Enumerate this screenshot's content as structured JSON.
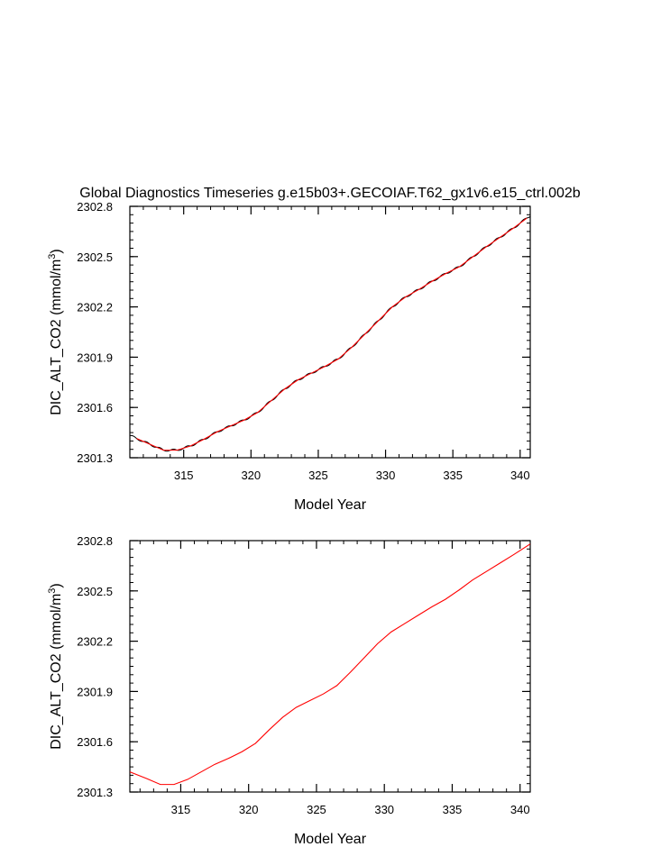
{
  "page_title": "Global Diagnostics Timeseries g.e15b03+.GECOIAF.T62_gx1v6.e15_ctrl.002b",
  "colors": {
    "axes": "#000000",
    "raw_series": "#000000",
    "smooth_series": "#ff0000",
    "background": "#ffffff"
  },
  "chart_data": [
    {
      "type": "line",
      "title": "Global Diagnostics Timeseries g.e15b03+.GECOIAF.T62_gx1v6.e15_ctrl.002b",
      "xlabel": "Model Year",
      "ylabel_main": "DIC_ALT_CO2 (mmol/m",
      "ylabel_sup": "3",
      "ylabel_close": ")",
      "xlim": [
        311.0,
        340.75
      ],
      "ylim": [
        2301.3,
        2302.8
      ],
      "x_ticks": [
        315,
        320,
        325,
        330,
        335,
        340
      ],
      "x_tick_labels": [
        "315",
        "320",
        "325",
        "330",
        "335",
        "340"
      ],
      "y_ticks": [
        2301.3,
        2301.6,
        2301.9,
        2302.2,
        2302.5,
        2302.8
      ],
      "y_tick_labels": [
        "2301.3",
        "2301.6",
        "2301.9",
        "2302.2",
        "2302.5",
        "2302.8"
      ],
      "x_minor_step": 1,
      "y_minor_step": 0.05,
      "grid": false,
      "raw_monthly": {
        "x_start": 311.0,
        "x_end": 340.75,
        "seasonal_amplitude": 0.006
      },
      "series": [
        {
          "role": "annual-mean",
          "color": "#ff0000",
          "x": [
            311.5,
            312.5,
            313.5,
            314.5,
            315.5,
            316.5,
            317.5,
            318.5,
            319.5,
            320.5,
            321.5,
            322.5,
            323.5,
            324.5,
            325.5,
            326.5,
            327.5,
            328.5,
            329.5,
            330.5,
            331.5,
            332.5,
            333.5,
            334.5,
            335.5,
            336.5,
            337.5,
            338.5,
            339.5,
            340.5
          ],
          "values": [
            2301.415,
            2301.38,
            2301.345,
            2301.345,
            2301.37,
            2301.41,
            2301.455,
            2301.49,
            2301.525,
            2301.57,
            2301.64,
            2301.71,
            2301.765,
            2301.805,
            2301.845,
            2301.89,
            2301.96,
            2302.04,
            2302.12,
            2302.2,
            2302.26,
            2302.305,
            2302.355,
            2302.4,
            2302.44,
            2302.5,
            2302.56,
            2302.615,
            2302.67,
            2302.73
          ]
        }
      ]
    },
    {
      "type": "line",
      "title": "",
      "xlabel": "Model Year",
      "ylabel_main": "DIC_ALT_CO2 (mmol/m",
      "ylabel_sup": "3",
      "ylabel_close": ")",
      "xlim": [
        311.25,
        340.75
      ],
      "ylim": [
        2301.3,
        2302.8
      ],
      "x_ticks": [
        315,
        320,
        325,
        330,
        335,
        340
      ],
      "x_tick_labels": [
        "315",
        "320",
        "325",
        "330",
        "335",
        "340"
      ],
      "y_ticks": [
        2301.3,
        2301.6,
        2301.9,
        2302.2,
        2302.5,
        2302.8
      ],
      "y_tick_labels": [
        "2301.3",
        "2301.6",
        "2301.9",
        "2302.2",
        "2302.5",
        "2302.8"
      ],
      "x_minor_step": 1,
      "y_minor_step": 0.05,
      "grid": false,
      "series": [
        {
          "role": "annual-mean",
          "color": "#ff0000",
          "x": [
            311.25,
            312.5,
            313.5,
            314.5,
            315.5,
            316.5,
            317.5,
            318.5,
            319.5,
            320.5,
            321.5,
            322.5,
            323.5,
            324.5,
            325.5,
            326.5,
            327.5,
            328.5,
            329.5,
            330.5,
            331.5,
            332.5,
            333.5,
            334.5,
            335.5,
            336.5,
            337.5,
            338.5,
            339.5,
            340.75
          ],
          "values": [
            2301.42,
            2301.38,
            2301.345,
            2301.345,
            2301.375,
            2301.42,
            2301.465,
            2301.5,
            2301.54,
            2301.59,
            2301.67,
            2301.745,
            2301.805,
            2301.845,
            2301.885,
            2301.935,
            2302.015,
            2302.1,
            2302.185,
            2302.255,
            2302.305,
            2302.355,
            2302.405,
            2302.45,
            2302.505,
            2302.565,
            2302.615,
            2302.665,
            2302.715,
            2302.78
          ]
        }
      ]
    }
  ]
}
